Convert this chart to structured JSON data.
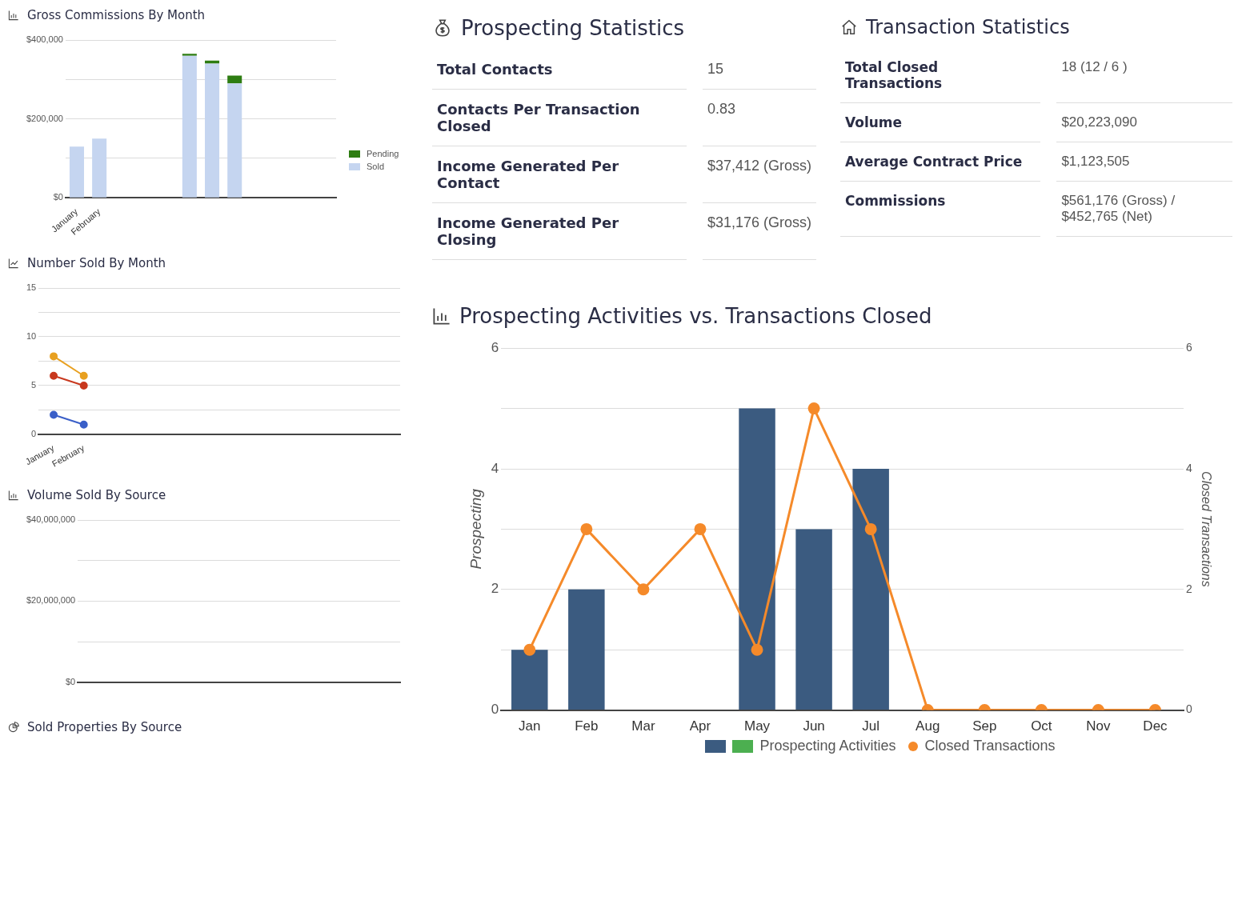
{
  "chart_data": [
    {
      "type": "bar",
      "title": "Gross Commissions By Month",
      "categories": [
        "January",
        "February",
        null,
        null,
        null,
        null,
        null,
        null,
        null,
        null,
        null,
        null
      ],
      "stacked": true,
      "legend": "right",
      "grid": "y",
      "ylim": [
        0,
        400000
      ],
      "yticks": [
        {
          "value": 0,
          "label": "$0"
        },
        {
          "value": 100000,
          "label": null
        },
        {
          "value": 200000,
          "label": "$200,000"
        },
        {
          "value": 300000,
          "label": null
        },
        {
          "value": 400000,
          "label": "$400,000"
        }
      ],
      "series": [
        {
          "name": "Sold",
          "color": "#c5d5f0",
          "values": [
            130000,
            150000,
            null,
            null,
            null,
            360000,
            340000,
            290000,
            null,
            null,
            null,
            null
          ]
        },
        {
          "name": "Pending",
          "color": "#2e7d12",
          "values": [
            null,
            null,
            null,
            null,
            null,
            5000,
            8000,
            20000,
            null,
            null,
            null,
            null
          ]
        }
      ]
    },
    {
      "type": "line",
      "title": "Number Sold By Month",
      "categories": [
        "January",
        "February",
        null,
        null,
        null,
        null,
        null,
        null,
        null,
        null,
        null,
        null
      ],
      "grid": "y",
      "marker": "circle",
      "ylim": [
        0,
        15
      ],
      "yticks": [
        0,
        {
          "value": 2.5,
          "label": null
        },
        5,
        {
          "value": 7.5,
          "label": null
        },
        10,
        {
          "value": 12.5,
          "label": null
        },
        15
      ],
      "series": [
        {
          "color": "#e8a020",
          "values": [
            8,
            6,
            null,
            null,
            null,
            null,
            null,
            null,
            null,
            null,
            null,
            null
          ]
        },
        {
          "color": "#c8381e",
          "values": [
            6,
            5,
            null,
            null,
            null,
            null,
            null,
            null,
            null,
            null,
            null,
            null
          ]
        },
        {
          "color": "#3a5fc8",
          "values": [
            2,
            1,
            null,
            null,
            null,
            null,
            null,
            null,
            null,
            null,
            null,
            null
          ]
        }
      ]
    },
    {
      "type": "bar",
      "title": "Volume Sold By Source",
      "categories": [
        null
      ],
      "values": [
        null
      ],
      "grid": "y",
      "ylim": [
        0,
        40000000
      ],
      "yticks": [
        {
          "value": 0,
          "label": "$0"
        },
        {
          "value": 10000000,
          "label": null
        },
        {
          "value": 20000000,
          "label": "$20,000,000"
        },
        {
          "value": 30000000,
          "label": null
        },
        {
          "value": 40000000,
          "label": "$40,000,000"
        }
      ]
    },
    {
      "type": "other",
      "title": "Sold Properties By Source"
    },
    {
      "type": "other",
      "title": "Prospecting Statistics",
      "annotations": [
        "Total Contacts",
        "15",
        "Contacts Per Transaction Closed",
        "0.83",
        "Income Generated Per Contact",
        "$37,412 (Gross)",
        "Income Generated Per Closing",
        "$31,176 (Gross)"
      ]
    },
    {
      "type": "other",
      "title": "Transaction Statistics",
      "annotations": [
        "Total Closed Transactions",
        "18 (12 / 6 )",
        "Volume",
        "$20,223,090",
        "Average Contract Price",
        "$1,123,505",
        "Commissions",
        "$561,176 (Gross) / $452,765 (Net)"
      ]
    },
    {
      "type": "bar",
      "title": "Prospecting Activities vs. Transactions Closed",
      "categories": [
        "Jan",
        "Feb",
        "Mar",
        "Apr",
        "May",
        "Jun",
        "Jul",
        "Aug",
        "Sep",
        "Oct",
        "Nov",
        "Dec"
      ],
      "ylabel": "Prospecting",
      "y2label": "Closed Transactions",
      "legend": "bottom",
      "grid": "y",
      "marker": "circle",
      "ylim": [
        0,
        6
      ],
      "yticks": [
        0,
        {
          "value": 1,
          "label": null
        },
        2,
        {
          "value": 3,
          "label": null
        },
        4,
        {
          "value": 5,
          "label": null
        },
        6
      ],
      "y2lim": [
        0,
        6
      ],
      "y2ticks": [
        0,
        2,
        4,
        6
      ],
      "series": [
        {
          "name": "Prospecting Activities",
          "color": "#3b5b80",
          "values": [
            1,
            2,
            0,
            0,
            5,
            3,
            4,
            0,
            0,
            0,
            0,
            0
          ]
        },
        {
          "name": "Closed Transactions",
          "type": "line",
          "axis": "y2",
          "color": "#f58a2a",
          "values": [
            1,
            3,
            2,
            3,
            1,
            5,
            3,
            0,
            0,
            0,
            0,
            0
          ]
        }
      ]
    }
  ]
}
